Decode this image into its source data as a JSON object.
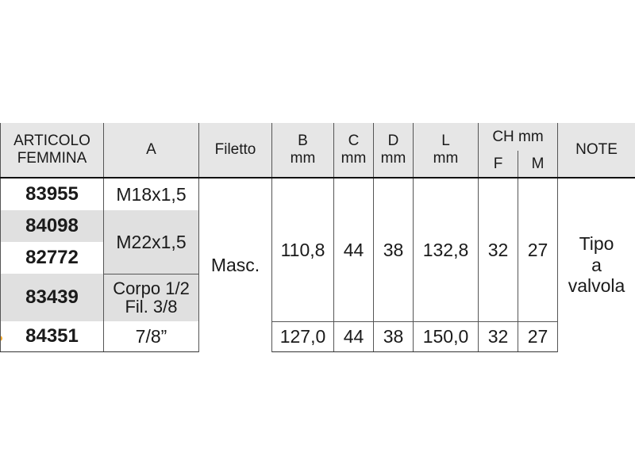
{
  "header": {
    "articolo": [
      "ARTICOLO",
      "FEMMINA"
    ],
    "a": "A",
    "filetto": "Filetto",
    "b": [
      "B",
      "mm"
    ],
    "c": [
      "C",
      "mm"
    ],
    "d": [
      "D",
      "mm"
    ],
    "l": [
      "L",
      "mm"
    ],
    "ch": "CH mm",
    "ch_f": "F",
    "ch_m": "M",
    "note": "NOTE"
  },
  "rows": [
    {
      "articolo": "83955"
    },
    {
      "articolo": "84098"
    },
    {
      "articolo": "82772"
    },
    {
      "articolo": "83439"
    },
    {
      "articolo": "84351"
    }
  ],
  "a_values": [
    "M18x1,5",
    "M22x1,5",
    [
      "Corpo 1/2",
      "Fil. 3/8"
    ],
    "7/8”"
  ],
  "filetto": "Masc.",
  "group1": {
    "b": "110,8",
    "c": "44",
    "d": "38",
    "l": "132,8",
    "f": "32",
    "m": "27"
  },
  "group2": {
    "b": "127,0",
    "c": "44",
    "d": "38",
    "l": "150,0",
    "f": "32",
    "m": "27"
  },
  "note": [
    "Tipo",
    "a",
    "valvola"
  ],
  "colors": {
    "header_bg": "#e6e6e6",
    "row_alt_bg": "#e0e0e0",
    "marker": "#f5a623"
  }
}
